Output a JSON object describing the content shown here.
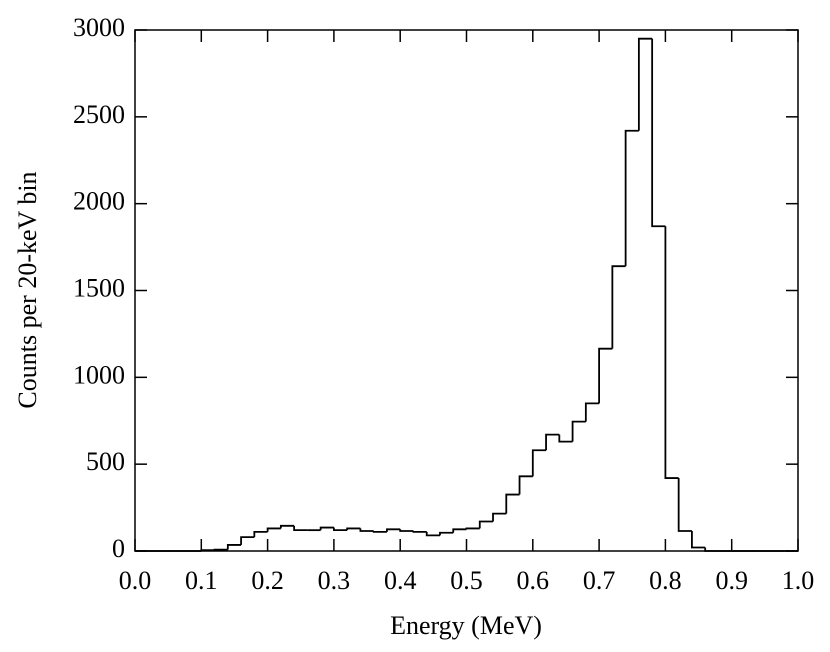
{
  "chart_data": {
    "type": "histogram",
    "x_label": "Energy (MeV)",
    "y_label": "Counts per 20-keV bin",
    "bins": [
      0,
      0.02,
      0.04,
      0.06,
      0.08,
      0.1,
      0.12,
      0.14,
      0.16,
      0.18,
      0.2,
      0.22,
      0.24,
      0.26,
      0.28,
      0.3,
      0.32,
      0.34,
      0.36,
      0.38,
      0.4,
      0.42,
      0.44,
      0.46,
      0.48,
      0.5,
      0.52,
      0.54,
      0.56,
      0.58,
      0.6,
      0.62,
      0.64,
      0.66,
      0.68,
      0.7,
      0.72,
      0.74,
      0.76,
      0.78,
      0.8,
      0.82,
      0.84,
      0.86,
      0.88,
      0.9,
      0.92,
      0.94,
      0.96,
      0.98,
      1
    ],
    "values": [
      0,
      0,
      0,
      0,
      0,
      5,
      8,
      35,
      80,
      110,
      130,
      145,
      120,
      120,
      135,
      120,
      130,
      115,
      110,
      125,
      115,
      110,
      90,
      105,
      125,
      130,
      170,
      215,
      325,
      430,
      580,
      670,
      630,
      745,
      850,
      1165,
      1640,
      2420,
      2950,
      1870,
      420,
      115,
      20,
      0,
      0,
      0,
      0,
      0,
      0,
      0
    ],
    "color": "#000000",
    "xlim": [
      0,
      1
    ],
    "xticks": [
      {
        "value": 0,
        "label": "0.0"
      },
      0.1,
      0.2,
      0.3,
      0.4,
      0.5,
      0.6,
      0.7,
      0.8,
      0.9,
      {
        "value": 1,
        "label": "1.0"
      }
    ],
    "ylim": [
      0,
      3000
    ],
    "yticks": [
      0,
      500,
      1000,
      1500,
      2000,
      2500,
      3000
    ],
    "grid": false
  }
}
